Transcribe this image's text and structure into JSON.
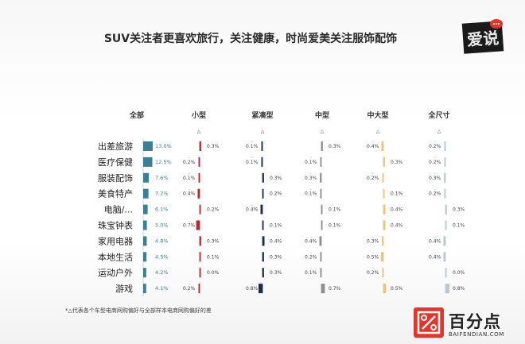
{
  "title": "SUV关注者更喜欢旅行，关注健康，时尚爱美关注服饰配饰",
  "footnote": "*△代表各个车型电商网购偏好与全部样本电商网购偏好的差",
  "brand": {
    "name": "百分点",
    "url": "BAIFENDIAN.COM"
  },
  "logo_text": "爱说",
  "chart_data": {
    "type": "bar",
    "categories": [
      "出差旅游",
      "医疗保健",
      "服装配饰",
      "美食特产",
      "电脑/...",
      "珠宝钟表",
      "家用电器",
      "本地生活",
      "运动户外",
      "游戏"
    ],
    "series": [
      {
        "name": "全部",
        "values": [
          13.0,
          12.5,
          7.6,
          7.2,
          6.1,
          5.0,
          4.8,
          4.5,
          4.2,
          4.1
        ],
        "color": "#3a7f95"
      },
      {
        "name": "小型",
        "values": [
          0.3,
          -0.2,
          -0.1,
          -0.4,
          0.2,
          -0.7,
          0.3,
          0.1,
          0.0,
          -0.2
        ],
        "color": "#b7262b"
      },
      {
        "name": "紧凑型",
        "values": [
          -0.1,
          -0.1,
          0.3,
          0.2,
          -0.4,
          0.1,
          0.4,
          0.3,
          0.3,
          -0.8
        ],
        "color": "#1e2e48"
      },
      {
        "name": "中型",
        "values": [
          0.3,
          -0.1,
          -0.3,
          -0.1,
          0.1,
          0.1,
          -0.4,
          -0.2,
          -0.1,
          0.7
        ],
        "color": "#8f8f8f"
      },
      {
        "name": "中大型",
        "values": [
          -0.4,
          0.3,
          -0.2,
          0.1,
          0.4,
          0.4,
          -0.3,
          -0.5,
          -0.2,
          0.5
        ],
        "color": "#e8c47e"
      },
      {
        "name": "全尺寸",
        "values": [
          -0.2,
          -0.2,
          -0.3,
          -0.2,
          0.3,
          0.1,
          -0.4,
          -0.4,
          -0.0,
          0.8
        ],
        "color": "#b9c9d2"
      }
    ],
    "labels": {
      "全部": [
        "13.0%",
        "12.5%",
        "7.6%",
        "7.2%",
        "6.1%",
        "5.0%",
        "4.8%",
        "4.5%",
        "4.2%",
        "4.1%"
      ],
      "小型": [
        "0.3%",
        "0.2%",
        "0.1%",
        "0.4%",
        "0.2%",
        "0.7%",
        "0.3%",
        "0.1%",
        "0.0%",
        "0.2%"
      ],
      "紧凑型": [
        "0.1%",
        "0.1%",
        "0.3%",
        "0.2%",
        "0.4%",
        "0.1%",
        "0.4%",
        "0.3%",
        "0.3%",
        "0.8%"
      ],
      "中型": [
        "0.3%",
        "0.1%",
        "0.3%",
        "0.1%",
        "0.1%",
        "0.1%",
        "0.4%",
        "0.2%",
        "0.1%",
        "0.7%"
      ],
      "中大型": [
        "0.4%",
        "0.3%",
        "0.2%",
        "0.1%",
        "0.4%",
        "0.4%",
        "0.3%",
        "0.5%",
        "0.2%",
        "0.5%"
      ],
      "全尺寸": [
        "0.2%",
        "0.2%",
        "0.3%",
        "0.2%",
        "0.3%",
        "0.1%",
        "0.4%",
        "0.4%",
        "0.0%",
        "0.8%"
      ]
    },
    "delta_symbol": "△",
    "xlim_all": [
      0,
      13.0
    ],
    "xlim_delta": [
      -0.8,
      0.8
    ]
  }
}
